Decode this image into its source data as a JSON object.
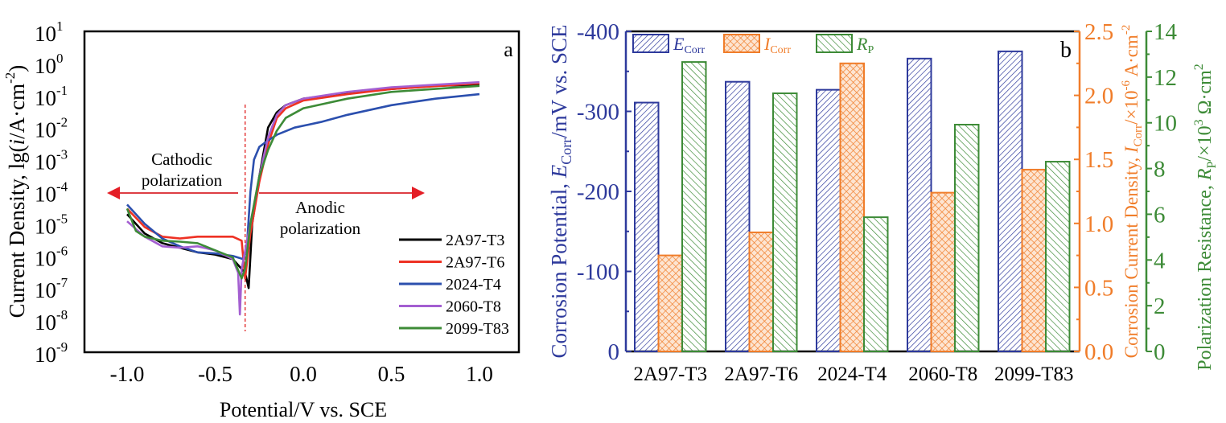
{
  "chart_data": [
    {
      "type": "line",
      "panel_label": "a",
      "xlabel": "Potential/V vs. SCE",
      "ylabel": "Current Density, lg(i/A·cm-2)",
      "xlim": [
        -1.22,
        1.22
      ],
      "ylim": [
        1e-09,
        10
      ],
      "yscale": "log",
      "xticks": [
        "-1.0",
        "-0.5",
        "0.0",
        "0.5",
        "1.0"
      ],
      "yticks": [
        {
          "base": "10",
          "exp": "1"
        },
        {
          "base": "10",
          "exp": "0"
        },
        {
          "base": "10",
          "exp": "-1"
        },
        {
          "base": "10",
          "exp": "-2"
        },
        {
          "base": "10",
          "exp": "-3"
        },
        {
          "base": "10",
          "exp": "-4"
        },
        {
          "base": "10",
          "exp": "-5"
        },
        {
          "base": "10",
          "exp": "-6"
        },
        {
          "base": "10",
          "exp": "-7"
        },
        {
          "base": "10",
          "exp": "-8"
        },
        {
          "base": "10",
          "exp": "-9"
        }
      ],
      "corrosion_potential_line": -0.33,
      "annotations": {
        "cathodic": [
          "Cathodic",
          "polarization"
        ],
        "anodic": [
          "Anodic",
          "polarization"
        ]
      },
      "legend_placement": "bottom-right",
      "series": [
        {
          "name": "2A97-T3",
          "color": "#000000",
          "x": [
            -1.0,
            -0.9,
            -0.8,
            -0.7,
            -0.6,
            -0.5,
            -0.4,
            -0.33,
            -0.31,
            -0.29,
            -0.25,
            -0.2,
            -0.15,
            -0.1,
            0,
            0.25,
            0.5,
            0.75,
            1.0
          ],
          "y": [
            2e-05,
            5e-06,
            2.5e-06,
            1.8e-06,
            1.3e-06,
            1.1e-06,
            8e-07,
            3e-07,
            1e-07,
            1e-05,
            0.0003,
            0.01,
            0.03,
            0.05,
            0.08,
            0.12,
            0.16,
            0.2,
            0.22
          ]
        },
        {
          "name": "2A97-T6",
          "color": "#ee3124",
          "x": [
            -1.0,
            -0.9,
            -0.8,
            -0.7,
            -0.6,
            -0.4,
            -0.35,
            -0.33,
            -0.3,
            -0.25,
            -0.2,
            -0.15,
            -0.1,
            0,
            0.25,
            0.5,
            1.0
          ],
          "y": [
            3e-05,
            8e-06,
            4e-06,
            3.5e-06,
            4e-06,
            4e-06,
            3e-06,
            2e-07,
            5e-06,
            0.0002,
            0.003,
            0.02,
            0.04,
            0.07,
            0.11,
            0.16,
            0.24
          ]
        },
        {
          "name": "2024-T4",
          "color": "#2b4fae",
          "x": [
            -1.0,
            -0.9,
            -0.8,
            -0.7,
            -0.6,
            -0.5,
            -0.4,
            -0.34,
            -0.32,
            -0.3,
            -0.28,
            -0.25,
            -0.2,
            -0.15,
            -0.05,
            0.1,
            0.25,
            0.5,
            0.75,
            1.0
          ],
          "y": [
            4e-05,
            1e-05,
            3.5e-06,
            2e-06,
            1.3e-06,
            1.2e-06,
            1e-06,
            8e-07,
            2e-06,
            0.0001,
            0.001,
            0.0025,
            0.004,
            0.006,
            0.01,
            0.015,
            0.025,
            0.05,
            0.08,
            0.11
          ]
        },
        {
          "name": "2060-T8",
          "color": "#a45fd1",
          "x": [
            -1.0,
            -0.9,
            -0.8,
            -0.7,
            -0.6,
            -0.5,
            -0.4,
            -0.37,
            -0.36,
            -0.35,
            -0.3,
            -0.25,
            -0.2,
            -0.15,
            -0.1,
            0,
            0.25,
            0.5,
            1.0
          ],
          "y": [
            1.2e-05,
            4e-06,
            2e-06,
            1.8e-06,
            2e-06,
            1.5e-06,
            8e-07,
            3e-07,
            1.5e-08,
            4e-07,
            1e-05,
            0.0003,
            0.005,
            0.025,
            0.05,
            0.08,
            0.13,
            0.18,
            0.26
          ]
        },
        {
          "name": "2099-T83",
          "color": "#3d8b37",
          "x": [
            -1.0,
            -0.95,
            -0.9,
            -0.8,
            -0.7,
            -0.6,
            -0.5,
            -0.4,
            -0.35,
            -0.33,
            -0.3,
            -0.25,
            -0.2,
            -0.15,
            -0.1,
            0,
            0.25,
            0.5,
            1.0
          ],
          "y": [
            3e-05,
            6e-06,
            4e-06,
            3e-06,
            2.8e-06,
            2.5e-06,
            1.5e-06,
            9e-07,
            2e-07,
            4e-07,
            1e-05,
            0.0003,
            0.002,
            0.008,
            0.02,
            0.04,
            0.08,
            0.13,
            0.2
          ]
        }
      ]
    },
    {
      "type": "bar",
      "panel_label": "b",
      "categories": [
        "2A97-T3",
        "2A97-T6",
        "2024-T4",
        "2060-T8",
        "2099-T83"
      ],
      "legend_placement": "top-left",
      "series": [
        {
          "name": "ECorr",
          "label_main": "E",
          "label_sub": "Corr",
          "axis": "left",
          "color": "#2e3a9c",
          "values": [
            -311,
            -337,
            -327,
            -366,
            -375
          ]
        },
        {
          "name": "ICorr",
          "label_main": "I",
          "label_sub": "Corr",
          "axis": "right1",
          "color": "#f07d2a",
          "values": [
            0.75,
            0.93,
            2.25,
            1.24,
            1.42
          ]
        },
        {
          "name": "RP",
          "label_main": "R",
          "label_sub": "P",
          "axis": "right2",
          "color": "#3d8b37",
          "values": [
            12.66,
            11.29,
            5.87,
            9.92,
            8.3
          ]
        }
      ],
      "axes": {
        "left": {
          "label": "Corrosion Potential, ECorr/mV vs. SCE",
          "label_parts": [
            "Corrosion Potential, ",
            "E",
            "Corr",
            "/mV vs. SCE"
          ],
          "ylim": [
            0,
            -400
          ],
          "ticks": [
            "0",
            "-100",
            "-200",
            "-300",
            "-400"
          ],
          "color": "#2e3a9c"
        },
        "right1": {
          "label": "Corrosion Current Density, ICorr/×10-6 A·cm-2",
          "label_parts": [
            "Corrosion Current Density, ",
            "I",
            "Corr",
            "/×10",
            "-6",
            " A·cm",
            "-2"
          ],
          "ylim": [
            0,
            2.5
          ],
          "ticks": [
            "0.0",
            "0.5",
            "1.0",
            "1.5",
            "2.0",
            "2.5"
          ],
          "color": "#f07d2a"
        },
        "right2": {
          "label": "Polarization Resistance, RP/×103 Ω·cm2",
          "label_parts": [
            "Polarization Resistance, ",
            "R",
            "p",
            "/×10",
            "3",
            " Ω·cm",
            "2"
          ],
          "ylim": [
            0,
            14
          ],
          "ticks": [
            "0",
            "2",
            "4",
            "6",
            "8",
            "10",
            "12",
            "14"
          ],
          "color": "#3d8b37"
        }
      }
    }
  ]
}
